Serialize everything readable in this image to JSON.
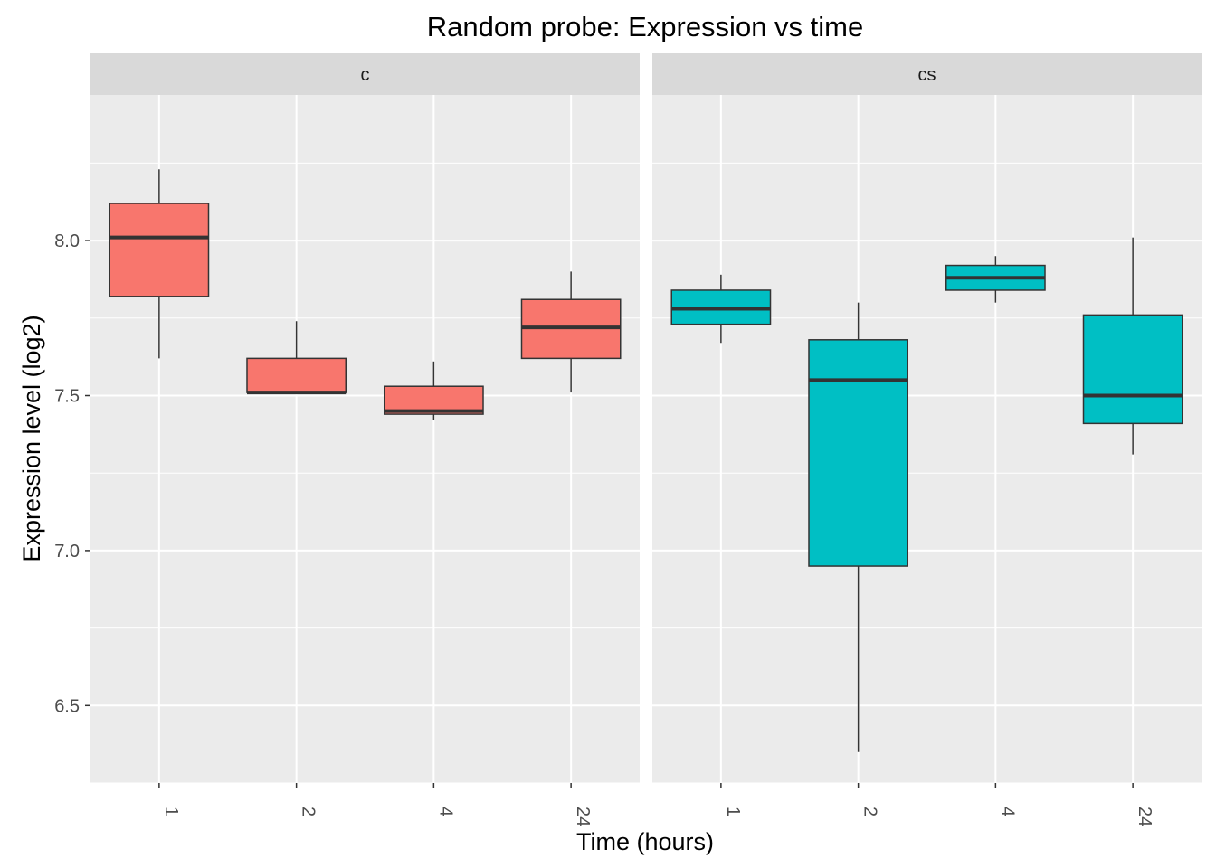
{
  "chart_data": {
    "type": "box",
    "title": "Random probe: Expression vs time",
    "xlabel": "Time (hours)",
    "ylabel": "Expression level (log2)",
    "categories": [
      "1",
      "2",
      "4",
      "24"
    ],
    "ylim": [
      6.25,
      8.47
    ],
    "yticks": [
      6.5,
      7.0,
      7.5,
      8.0
    ],
    "y_tick_labels": [
      "6.5",
      "7.0",
      "7.5",
      "8.0"
    ],
    "grid": true,
    "legend": "none",
    "panels": [
      {
        "strip_label": "c",
        "fill_color": "#F8766D",
        "boxes": [
          {
            "x": "1",
            "whisker_low": 7.62,
            "q1": 7.82,
            "median": 8.01,
            "q3": 8.12,
            "whisker_high": 8.23
          },
          {
            "x": "2",
            "whisker_low": 7.51,
            "q1": 7.51,
            "median": 7.51,
            "q3": 7.62,
            "whisker_high": 7.74
          },
          {
            "x": "4",
            "whisker_low": 7.42,
            "q1": 7.44,
            "median": 7.45,
            "q3": 7.53,
            "whisker_high": 7.61
          },
          {
            "x": "24",
            "whisker_low": 7.51,
            "q1": 7.62,
            "median": 7.72,
            "q3": 7.81,
            "whisker_high": 7.9
          }
        ]
      },
      {
        "strip_label": "cs",
        "fill_color": "#00BFC4",
        "boxes": [
          {
            "x": "1",
            "whisker_low": 7.67,
            "q1": 7.73,
            "median": 7.78,
            "q3": 7.84,
            "whisker_high": 7.89
          },
          {
            "x": "2",
            "whisker_low": 6.35,
            "q1": 6.95,
            "median": 7.55,
            "q3": 7.68,
            "whisker_high": 7.8
          },
          {
            "x": "4",
            "whisker_low": 7.8,
            "q1": 7.84,
            "median": 7.88,
            "q3": 7.92,
            "whisker_high": 7.95
          },
          {
            "x": "24",
            "whisker_low": 7.31,
            "q1": 7.41,
            "median": 7.5,
            "q3": 7.76,
            "whisker_high": 8.01
          }
        ]
      }
    ]
  }
}
